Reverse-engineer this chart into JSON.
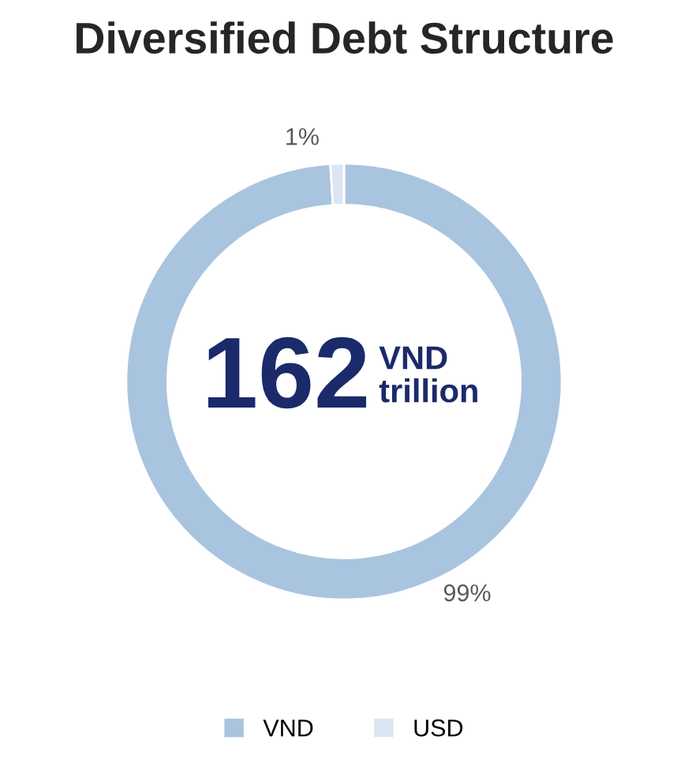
{
  "chart_data": {
    "type": "donut",
    "title": "Diversified Debt Structure",
    "categories": [
      "VND",
      "USD"
    ],
    "values": [
      99,
      1
    ],
    "colors": [
      "#a9c4df",
      "#dce6f2"
    ],
    "value_labels": [
      "99%",
      "1%"
    ],
    "annotations": [
      "162",
      "VND\ntrillion"
    ],
    "legend": "bottom"
  }
}
